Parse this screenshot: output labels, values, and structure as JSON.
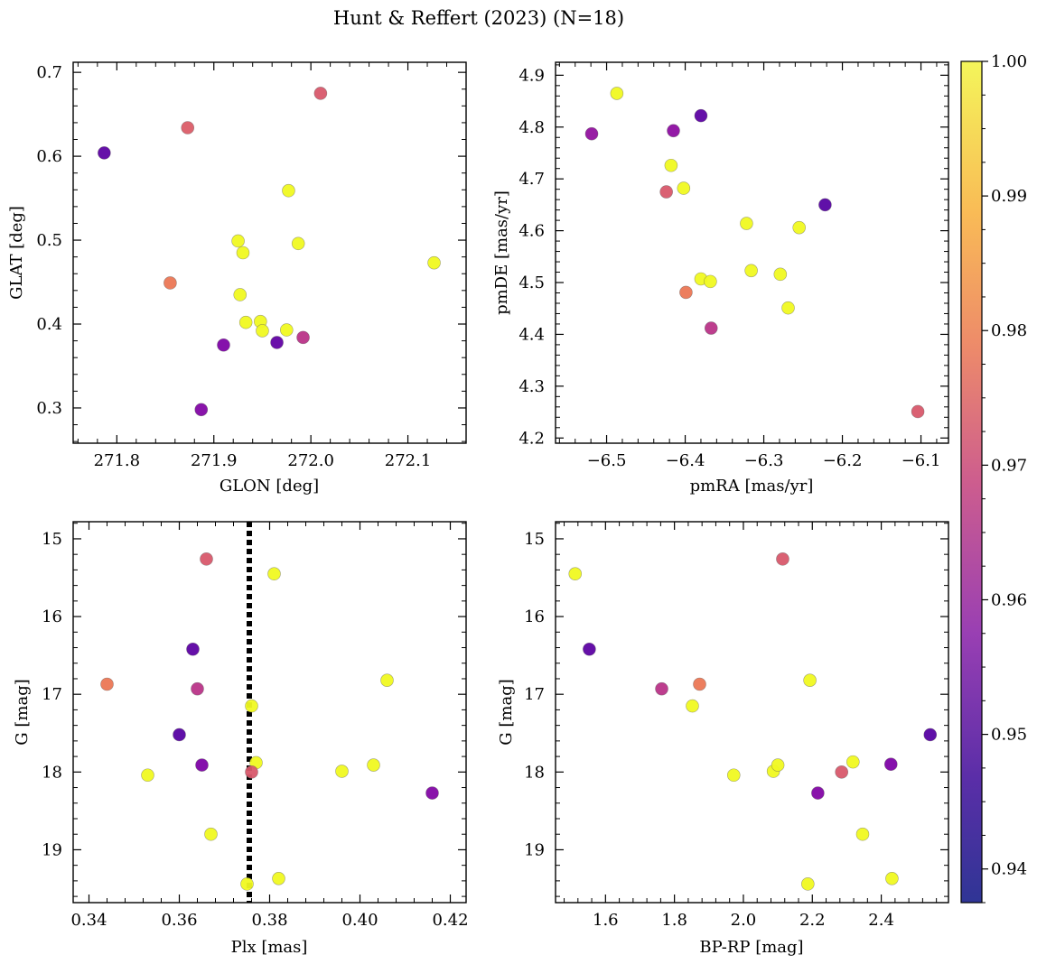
{
  "figure": {
    "title": "Hunt & Reffert (2023) (N=18)"
  },
  "colorbar": {
    "range": [
      0.9375,
      1.0
    ],
    "ticks": [
      0.94,
      0.95,
      0.96,
      0.97,
      0.98,
      0.99,
      1.0
    ],
    "tick_labels": [
      "0.94",
      "0.95",
      "0.96",
      "0.97",
      "0.98",
      "0.99",
      "1.00"
    ],
    "colormap": "plasma"
  },
  "chart_data": [
    {
      "type": "scatter",
      "panel": "top-left",
      "xlabel": "GLON [deg]",
      "ylabel": "GLAT [deg]",
      "xlim": [
        271.755,
        272.16
      ],
      "ylim": [
        0.258,
        0.712
      ],
      "xticks": [
        271.8,
        271.9,
        272.0,
        272.1
      ],
      "xtick_labels": [
        "271.8",
        "271.9",
        "272.0",
        "272.1"
      ],
      "yticks": [
        0.3,
        0.4,
        0.5,
        0.6,
        0.7
      ],
      "ytick_labels": [
        "0.3",
        "0.4",
        "0.5",
        "0.6",
        "0.7"
      ],
      "x": [
        272.01,
        271.873,
        271.787,
        271.977,
        271.925,
        271.93,
        271.987,
        272.127,
        271.855,
        271.927,
        271.933,
        271.948,
        271.95,
        271.975,
        271.91,
        271.965,
        271.992,
        271.887
      ],
      "y": [
        0.675,
        0.634,
        0.604,
        0.559,
        0.499,
        0.485,
        0.496,
        0.473,
        0.449,
        0.435,
        0.402,
        0.403,
        0.392,
        0.393,
        0.375,
        0.378,
        0.384,
        0.298
      ],
      "c": [
        0.969,
        0.97,
        0.941,
        1.0,
        1.0,
        1.0,
        1.0,
        1.0,
        0.976,
        1.0,
        1.0,
        1.0,
        1.0,
        1.0,
        0.947,
        0.942,
        0.96,
        0.948
      ]
    },
    {
      "type": "scatter",
      "panel": "top-right",
      "xlabel": "pmRA [mas/yr]",
      "ylabel": "pmDE [mas/yr]",
      "xlim": [
        -6.565,
        -6.065
      ],
      "ylim": [
        4.19,
        4.925
      ],
      "xticks": [
        -6.5,
        -6.4,
        -6.3,
        -6.2,
        -6.1
      ],
      "xtick_labels": [
        "−6.5",
        "−6.4",
        "−6.3",
        "−6.2",
        "−6.1"
      ],
      "yticks": [
        4.2,
        4.3,
        4.4,
        4.5,
        4.6,
        4.7,
        4.8,
        4.9
      ],
      "ytick_labels": [
        "4.2",
        "4.3",
        "4.4",
        "4.5",
        "4.6",
        "4.7",
        "4.8",
        "4.9"
      ],
      "x": [
        -6.487,
        -6.519,
        -6.415,
        -6.38,
        -6.418,
        -6.402,
        -6.424,
        -6.322,
        -6.222,
        -6.255,
        -6.316,
        -6.38,
        -6.368,
        -6.279,
        -6.269,
        -6.399,
        -6.367,
        -6.104
      ],
      "y": [
        4.865,
        4.787,
        4.793,
        4.822,
        4.726,
        4.682,
        4.675,
        4.614,
        4.65,
        4.606,
        4.523,
        4.507,
        4.502,
        4.516,
        4.451,
        4.481,
        4.412,
        4.251
      ],
      "c": [
        1.0,
        0.951,
        0.95,
        0.941,
        1.0,
        1.0,
        0.969,
        1.0,
        0.94,
        1.0,
        1.0,
        1.0,
        1.0,
        1.0,
        1.0,
        0.976,
        0.96,
        0.969
      ]
    },
    {
      "type": "scatter",
      "panel": "bottom-left",
      "xlabel": "Plx [mas]",
      "ylabel": "G [mag]",
      "xlim": [
        0.3365,
        0.4235
      ],
      "ylim": [
        19.68,
        14.78
      ],
      "xticks": [
        0.34,
        0.36,
        0.38,
        0.4,
        0.42
      ],
      "xtick_labels": [
        "0.34",
        "0.36",
        "0.38",
        "0.40",
        "0.42"
      ],
      "yticks": [
        15,
        16,
        17,
        18,
        19
      ],
      "ytick_labels": [
        "15",
        "16",
        "17",
        "18",
        "19"
      ],
      "x": [
        0.366,
        0.381,
        0.363,
        0.344,
        0.364,
        0.406,
        0.376,
        0.36,
        0.365,
        0.377,
        0.376,
        0.353,
        0.396,
        0.403,
        0.416,
        0.367,
        0.375,
        0.382
      ],
      "y": [
        15.26,
        15.45,
        16.42,
        16.87,
        16.93,
        16.82,
        17.15,
        17.52,
        17.91,
        17.88,
        18.0,
        18.04,
        17.99,
        17.91,
        18.27,
        18.8,
        19.44,
        19.37
      ],
      "c": [
        0.969,
        1.0,
        0.941,
        0.976,
        0.96,
        1.0,
        1.0,
        0.94,
        0.947,
        1.0,
        0.969,
        1.0,
        1.0,
        1.0,
        0.948,
        1.0,
        1.0,
        1.0
      ],
      "vline": {
        "x": 0.3755,
        "style": "dotted"
      }
    },
    {
      "type": "scatter",
      "panel": "bottom-right",
      "xlabel": "BP-RP [mag]",
      "ylabel": "G [mag]",
      "xlim": [
        1.455,
        2.595
      ],
      "ylim": [
        19.68,
        14.78
      ],
      "xticks": [
        1.6,
        1.8,
        2.0,
        2.2,
        2.4
      ],
      "xtick_labels": [
        "1.6",
        "1.8",
        "2.0",
        "2.2",
        "2.4"
      ],
      "yticks": [
        15,
        16,
        17,
        18,
        19
      ],
      "ytick_labels": [
        "15",
        "16",
        "17",
        "18",
        "19"
      ],
      "x": [
        1.512,
        2.114,
        1.553,
        1.763,
        1.873,
        1.852,
        2.193,
        2.542,
        2.428,
        2.318,
        2.285,
        1.972,
        2.087,
        2.1,
        2.216,
        2.346,
        2.187,
        2.431
      ],
      "y": [
        15.45,
        15.26,
        16.42,
        16.93,
        16.87,
        17.15,
        16.82,
        17.52,
        17.9,
        17.87,
        18.0,
        18.04,
        17.99,
        17.91,
        18.27,
        18.8,
        19.44,
        19.37
      ],
      "c": [
        1.0,
        0.969,
        0.941,
        0.96,
        0.976,
        1.0,
        1.0,
        0.94,
        0.947,
        1.0,
        0.969,
        1.0,
        1.0,
        1.0,
        0.948,
        1.0,
        1.0,
        1.0
      ]
    }
  ]
}
